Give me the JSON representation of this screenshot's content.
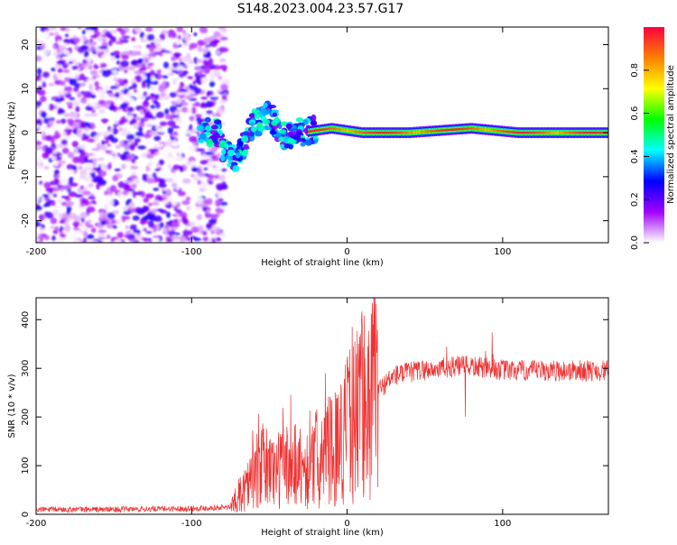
{
  "title": "S148.2023.004.23.57.G17",
  "chart_data": [
    {
      "type": "heatmap",
      "xlabel": "Height of straight line (km)",
      "ylabel": "Frequency (Hz)",
      "xlim": [
        -200,
        168
      ],
      "ylim": [
        -25,
        24
      ],
      "xticks": [
        -200,
        -100,
        0,
        100
      ],
      "yticks": [
        -20,
        -10,
        0,
        10,
        20
      ],
      "colorbar": {
        "label": "Normalized spectral amplitude",
        "range": [
          0,
          1
        ],
        "ticks": [
          "0.0",
          "0.2",
          "0.4",
          "0.6",
          "0.8"
        ],
        "colors": [
          "#ffffff",
          "#a000ff",
          "#0000ff",
          "#00ffff",
          "#00ff00",
          "#ffff00",
          "#ff8000",
          "#ff0040"
        ]
      },
      "ridge": [
        {
          "x": -80,
          "y": -4
        },
        {
          "x": -72,
          "y": -6
        },
        {
          "x": -60,
          "y": 2
        },
        {
          "x": -50,
          "y": 4
        },
        {
          "x": -40,
          "y": -1
        },
        {
          "x": -30,
          "y": 0
        },
        {
          "x": -10,
          "y": 1
        },
        {
          "x": 10,
          "y": 0
        },
        {
          "x": 40,
          "y": 0
        },
        {
          "x": 80,
          "y": 1
        },
        {
          "x": 110,
          "y": 0
        },
        {
          "x": 168,
          "y": 0
        }
      ]
    },
    {
      "type": "line",
      "xlabel": "Height of straight line (km)",
      "ylabel": "SNR (10 * v/v)",
      "xlim": [
        -200,
        168
      ],
      "ylim": [
        0,
        445
      ],
      "xticks": [
        -200,
        -100,
        0,
        100
      ],
      "yticks": [
        0,
        100,
        200,
        300,
        400
      ],
      "series": [
        {
          "color": "#ee3333",
          "x": [
            -200,
            -150,
            -100,
            -75,
            -65,
            -55,
            -45,
            -35,
            -25,
            -15,
            -5,
            5,
            15,
            30,
            45,
            60,
            75,
            90,
            105,
            130,
            168
          ],
          "y": [
            10,
            10,
            12,
            15,
            60,
            100,
            90,
            110,
            90,
            120,
            150,
            200,
            240,
            285,
            295,
            300,
            305,
            300,
            295,
            295,
            295
          ]
        }
      ]
    }
  ]
}
